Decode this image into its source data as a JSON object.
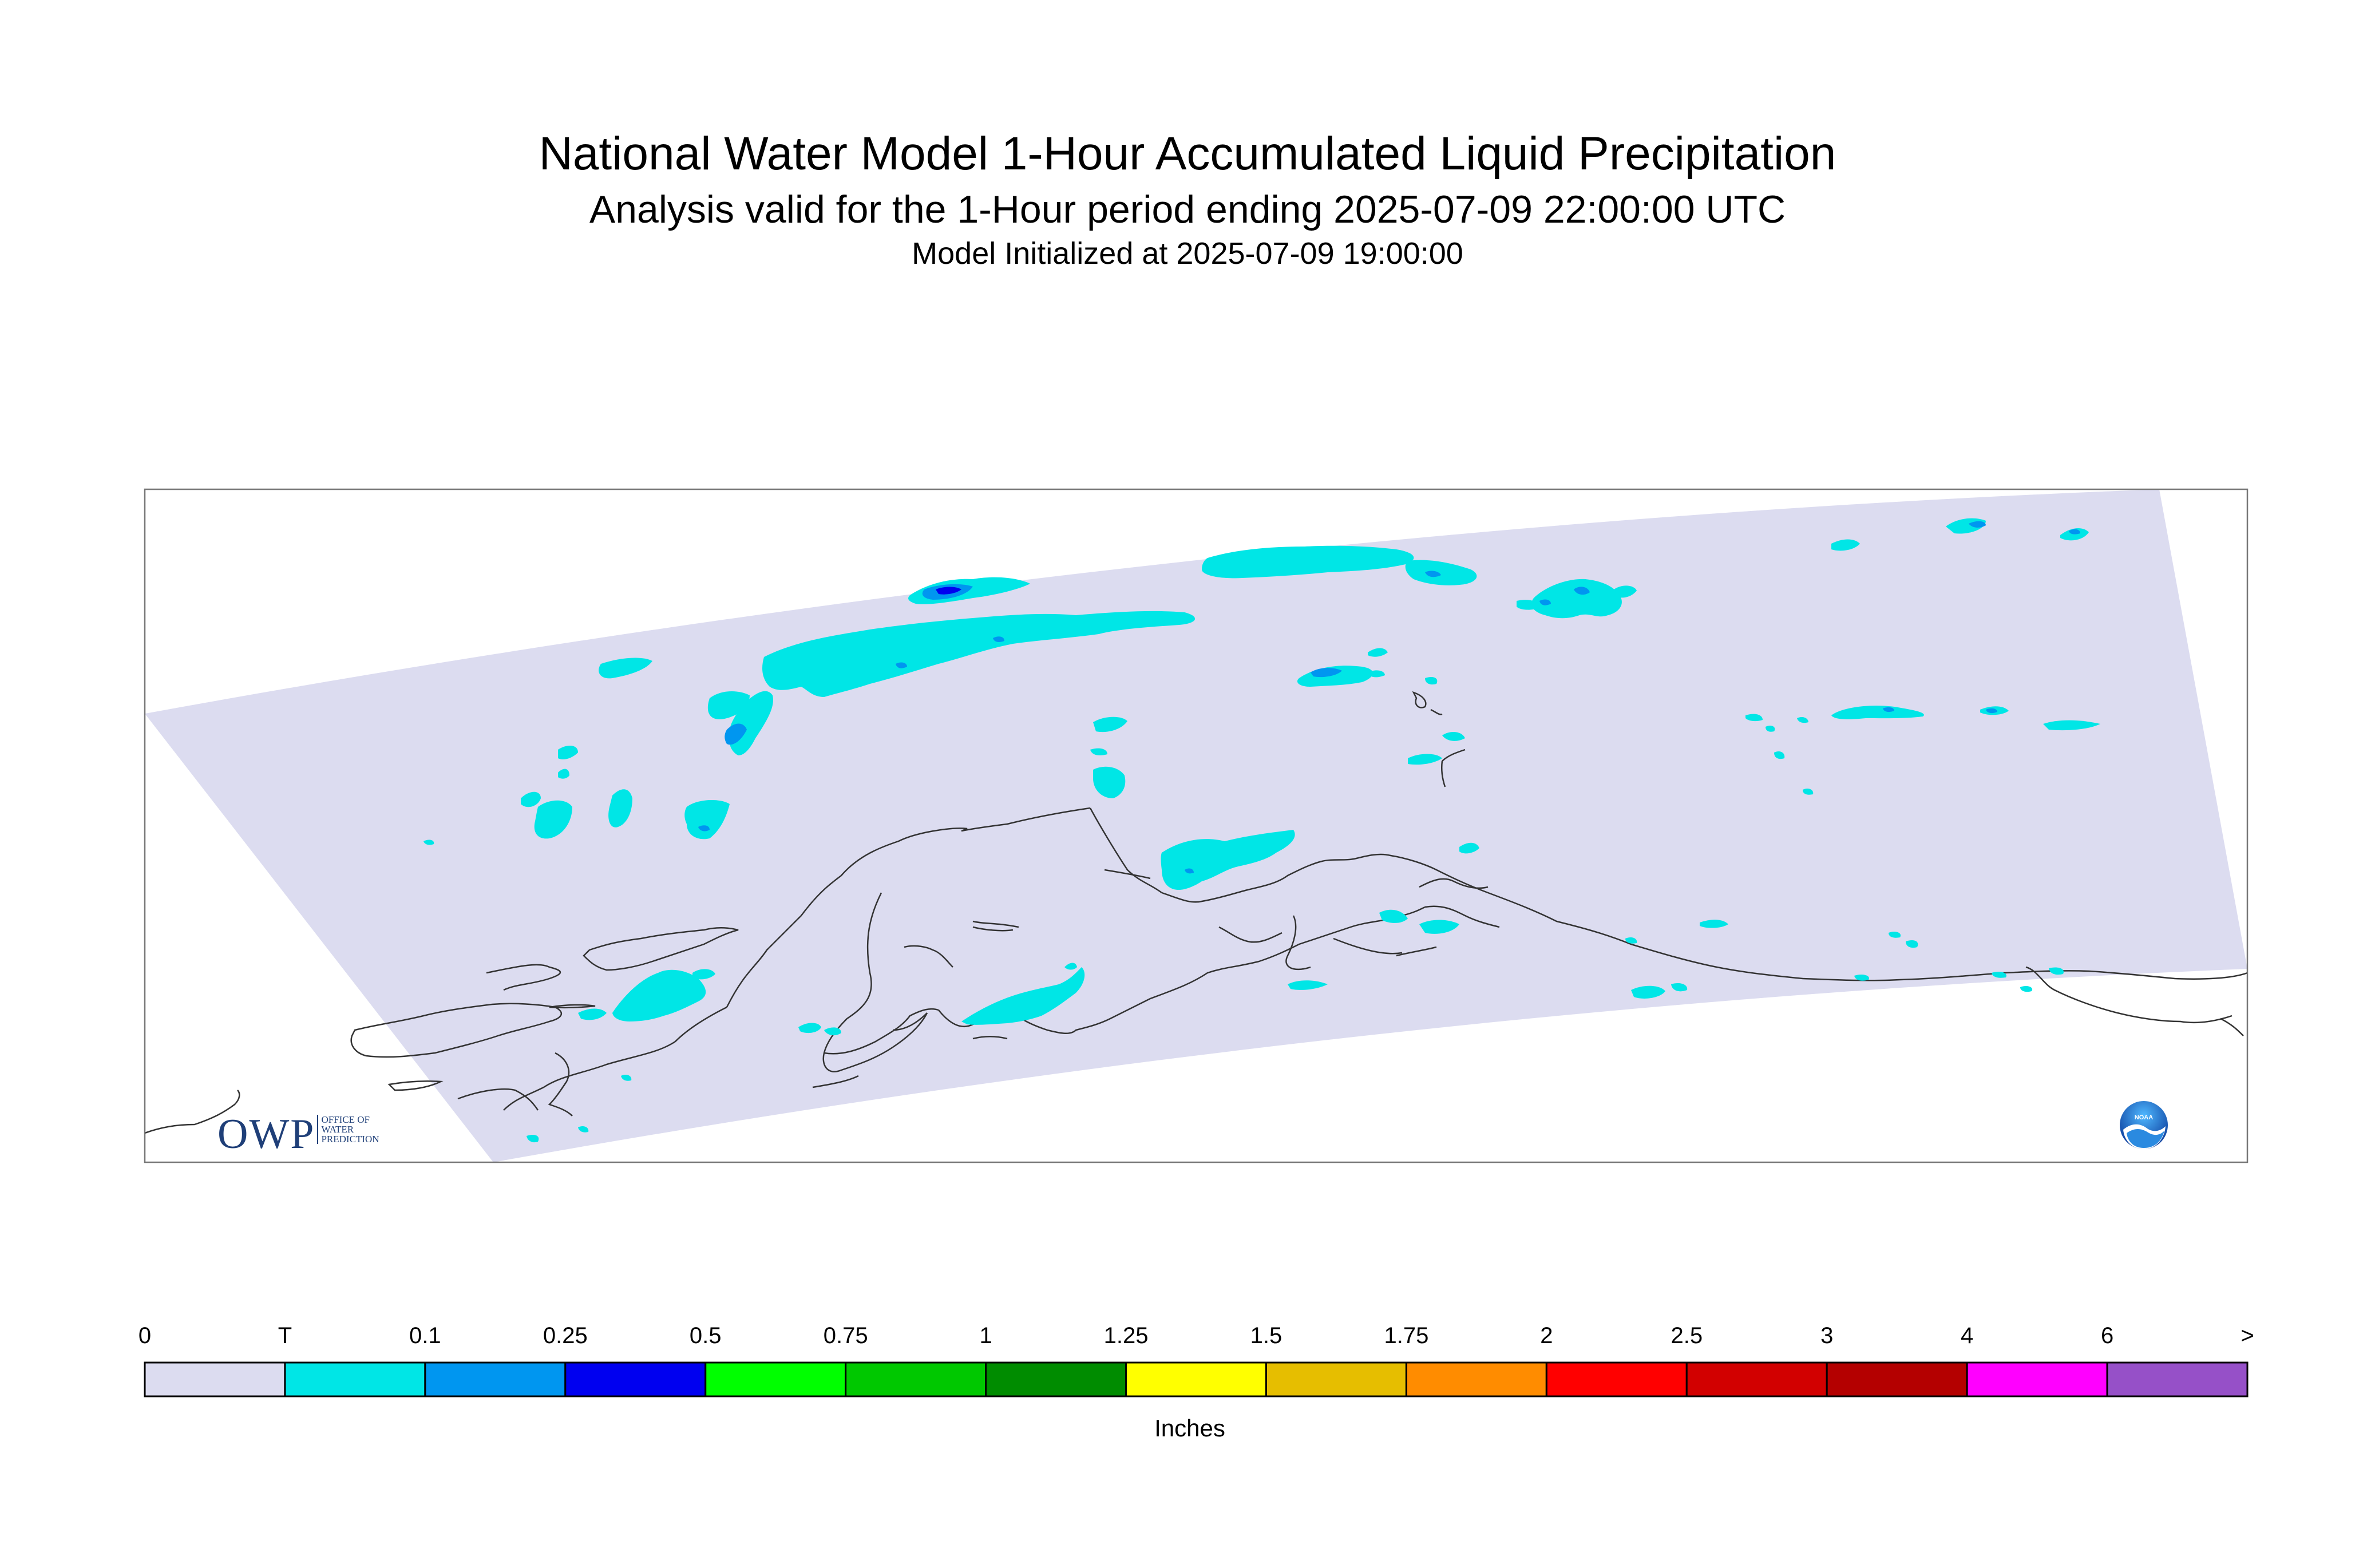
{
  "titles": {
    "main": "National Water Model 1-Hour Accumulated Liquid Precipitation",
    "analysis": "Analysis valid for the 1-Hour period ending 2025-07-09 22:00:00 UTC",
    "initialized": "Model Initialized at 2025-07-09 19:00:00"
  },
  "map": {
    "region": "Alaska",
    "domain_fill": "#dcdcf0",
    "coastline_color": "#333333"
  },
  "legend": {
    "units": "Inches",
    "labels": [
      "0",
      "T",
      "0.1",
      "0.25",
      "0.5",
      "0.75",
      "1",
      "1.25",
      "1.5",
      "1.75",
      "2",
      "2.5",
      "3",
      "4",
      "6",
      ">"
    ],
    "colors": [
      "#dcdcf0",
      "#00e6e6",
      "#0096f0",
      "#0000f0",
      "#00ff00",
      "#00c800",
      "#008c00",
      "#ffff00",
      "#e6be00",
      "#ff8c00",
      "#ff0000",
      "#d20000",
      "#b40000",
      "#ff00ff",
      "#9650c8"
    ]
  },
  "logos": {
    "owp": {
      "text": "OWP",
      "tagline": [
        "OFFICE OF",
        "WATER",
        "PREDICTION"
      ]
    },
    "noaa": {
      "text": "NOAA"
    }
  }
}
